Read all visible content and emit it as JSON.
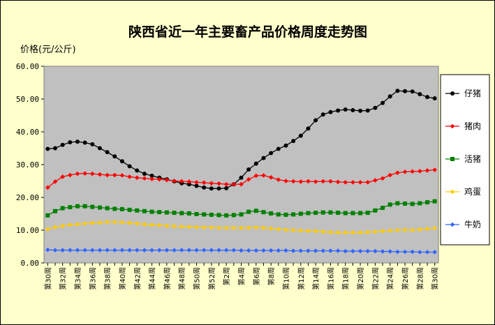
{
  "chart_data": {
    "type": "line",
    "title": "陕西省近一年主要畜产品价格周度走势图",
    "ylabel": "价格(元/公斤)",
    "xlabel": "",
    "ylim": [
      0,
      60
    ],
    "yticks": [
      "0.00",
      "10.00",
      "20.00",
      "30.00",
      "40.00",
      "50.00",
      "60.00"
    ],
    "grid": false,
    "legend_position": "right",
    "plot_background": "#c0c0c0",
    "categories": [
      "第30周",
      "第31周",
      "第32周",
      "第33周",
      "第34周",
      "第35周",
      "第36周",
      "第37周",
      "第38周",
      "第39周",
      "第40周",
      "第41周",
      "第42周",
      "第43周",
      "第44周",
      "第45周",
      "第46周",
      "第47周",
      "第48周",
      "第49周",
      "第50周",
      "第51周",
      "第52周",
      "第1周",
      "第2周",
      "第3周",
      "第4周",
      "第5周",
      "第6周",
      "第7周",
      "第8周",
      "第9周",
      "第10周",
      "第11周",
      "第12周",
      "第13周",
      "第14周",
      "第15周",
      "第16周",
      "第17周",
      "第18周",
      "第19周",
      "第20周",
      "第21周",
      "第22周",
      "第23周",
      "第24周",
      "第25周",
      "第26周",
      "第27周",
      "第28周",
      "第29周",
      "第30周"
    ],
    "series": [
      {
        "name": "仔猪",
        "color": "#000000",
        "marker": "circle",
        "values": [
          34.8,
          35.0,
          36.0,
          36.8,
          37.0,
          36.7,
          36.2,
          35.0,
          33.8,
          32.5,
          31.0,
          29.5,
          28.2,
          27.2,
          26.6,
          26.0,
          25.5,
          24.9,
          24.3,
          24.0,
          23.5,
          23.0,
          22.7,
          22.7,
          22.8,
          24.0,
          26.0,
          28.5,
          30.3,
          32.0,
          33.5,
          34.8,
          35.8,
          37.2,
          38.8,
          41.0,
          43.5,
          45.3,
          46.0,
          46.5,
          46.8,
          46.6,
          46.4,
          46.5,
          47.3,
          48.8,
          50.8,
          52.5,
          52.4,
          52.3,
          51.5,
          50.6,
          50.2
        ]
      },
      {
        "name": "猪肉",
        "color": "#ff0000",
        "marker": "diamond",
        "values": [
          23.0,
          24.8,
          26.3,
          26.8,
          27.2,
          27.3,
          27.2,
          27.0,
          26.8,
          26.8,
          26.7,
          26.3,
          26.0,
          25.8,
          25.6,
          25.5,
          25.3,
          25.0,
          24.9,
          24.8,
          24.6,
          24.5,
          24.3,
          24.2,
          24.0,
          24.0,
          24.0,
          25.5,
          26.6,
          26.7,
          26.1,
          25.4,
          25.0,
          24.9,
          24.8,
          24.9,
          24.8,
          24.9,
          24.9,
          24.7,
          24.6,
          24.6,
          24.6,
          24.6,
          25.2,
          25.8,
          26.8,
          27.5,
          27.8,
          27.9,
          28.0,
          28.2,
          28.4
        ]
      },
      {
        "name": "活猪",
        "color": "#008000",
        "marker": "square",
        "values": [
          14.5,
          15.8,
          16.7,
          17.0,
          17.3,
          17.3,
          17.1,
          16.9,
          16.7,
          16.5,
          16.4,
          16.2,
          16.0,
          15.8,
          15.6,
          15.5,
          15.4,
          15.3,
          15.2,
          15.1,
          14.9,
          14.8,
          14.7,
          14.6,
          14.5,
          14.6,
          14.8,
          15.6,
          15.9,
          15.5,
          15.1,
          14.8,
          14.7,
          14.8,
          15.0,
          15.2,
          15.3,
          15.4,
          15.4,
          15.3,
          15.2,
          15.2,
          15.2,
          15.3,
          16.0,
          16.8,
          17.8,
          18.2,
          18.1,
          18.0,
          18.2,
          18.5,
          18.8
        ]
      },
      {
        "name": "鸡蛋",
        "color": "#ffcc00",
        "marker": "diamond",
        "values": [
          10.3,
          10.9,
          11.3,
          11.6,
          11.8,
          12.0,
          12.2,
          12.3,
          12.5,
          12.5,
          12.4,
          12.2,
          12.0,
          11.8,
          11.6,
          11.5,
          11.3,
          11.2,
          11.1,
          11.0,
          10.9,
          10.8,
          10.8,
          10.7,
          10.7,
          10.7,
          10.7,
          10.7,
          10.8,
          10.7,
          10.5,
          10.3,
          10.1,
          10.0,
          9.9,
          9.8,
          9.7,
          9.5,
          9.4,
          9.3,
          9.3,
          9.3,
          9.3,
          9.4,
          9.5,
          9.7,
          9.9,
          10.0,
          10.1,
          10.0,
          10.2,
          10.4,
          10.6
        ]
      },
      {
        "name": "牛奶",
        "color": "#3366ff",
        "marker": "diamond",
        "values": [
          4.0,
          3.9,
          3.9,
          3.9,
          3.9,
          3.9,
          3.9,
          3.9,
          3.9,
          3.9,
          3.9,
          3.9,
          3.9,
          3.9,
          3.9,
          3.9,
          3.9,
          3.9,
          3.9,
          3.9,
          3.9,
          3.9,
          3.9,
          3.9,
          3.9,
          3.9,
          3.8,
          3.8,
          3.8,
          3.8,
          3.8,
          3.8,
          3.8,
          3.7,
          3.7,
          3.7,
          3.7,
          3.7,
          3.7,
          3.7,
          3.6,
          3.6,
          3.6,
          3.6,
          3.6,
          3.5,
          3.5,
          3.4,
          3.4,
          3.4,
          3.3,
          3.3,
          3.3
        ]
      }
    ]
  }
}
